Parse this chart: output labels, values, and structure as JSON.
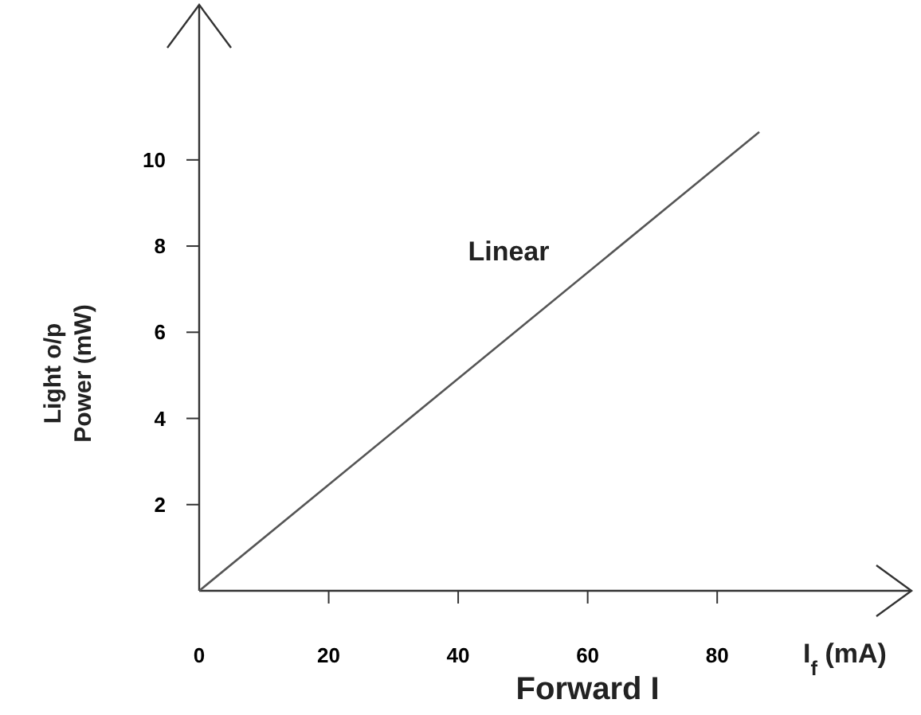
{
  "chart_data": {
    "type": "line",
    "xlabel": "Forward I",
    "ylabel": "Light o/p\nPower (mW)",
    "annotations": [
      "I$_{f}$ (mA)"
    ],
    "xlim": [
      0,
      110
    ],
    "ylim": [
      0,
      13.6
    ],
    "xticks": [
      {
        "value": 0,
        "label": "0"
      },
      20,
      40,
      60,
      80
    ],
    "yticks": [
      2,
      4,
      6,
      8,
      10
    ],
    "grid": false,
    "series": [
      {
        "name": "Linear",
        "color": "#555555",
        "x": [
          0,
          86.5
        ],
        "values": [
          0,
          10.65
        ]
      }
    ]
  }
}
